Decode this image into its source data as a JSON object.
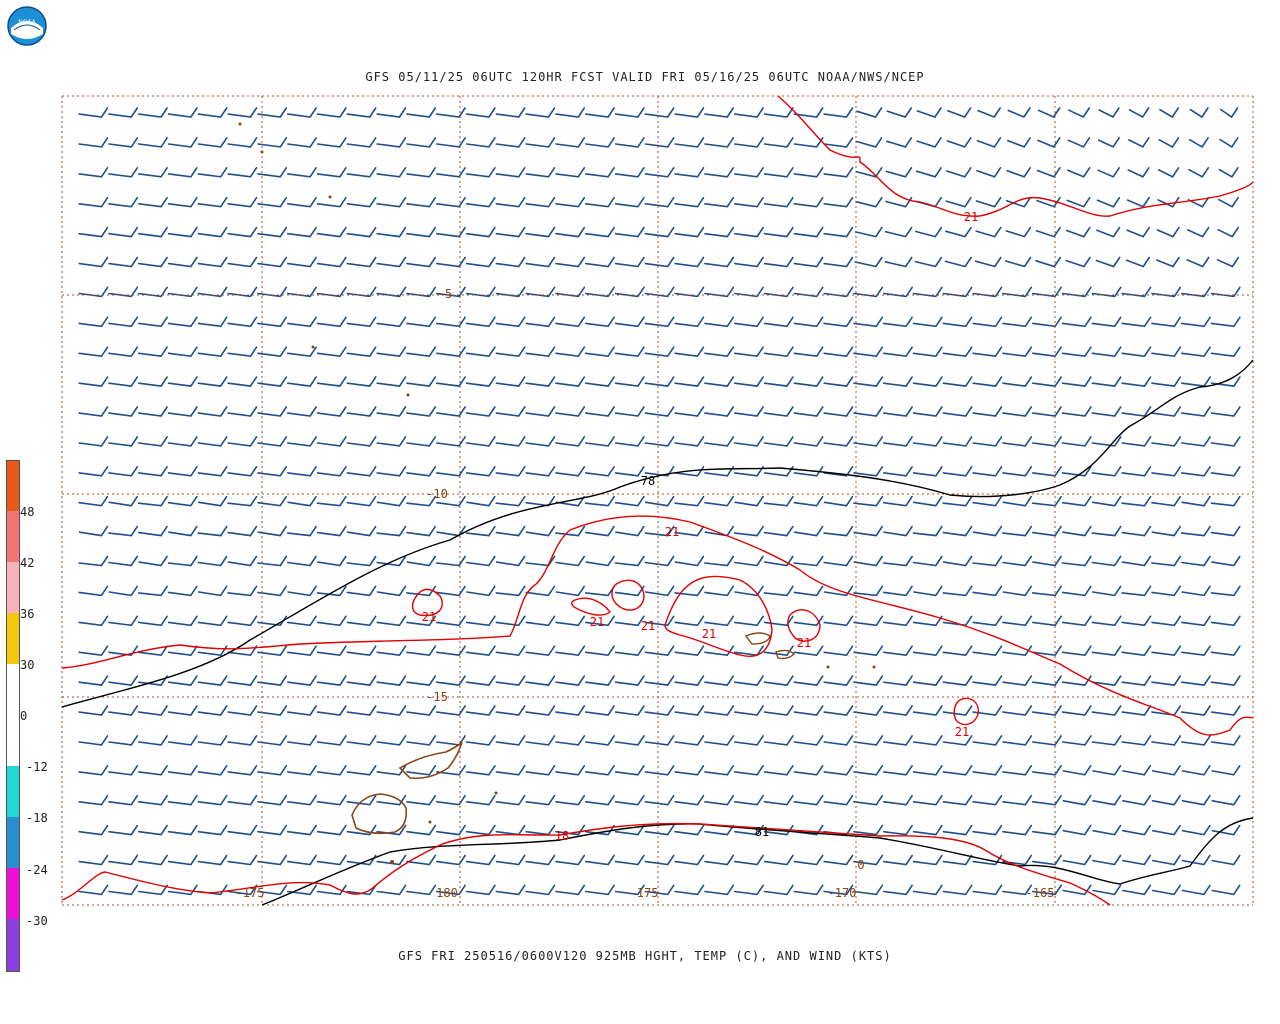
{
  "header": {
    "title": "GFS 05/11/25 06UTC 120HR FCST VALID FRI 05/16/25 06UTC NOAA/NWS/NCEP",
    "logo_text": "NOAA"
  },
  "footer": {
    "caption": "GFS FRI 250516/0600V120 925MB HGHT, TEMP (C), AND WIND (KTS)"
  },
  "map": {
    "longitudes": [
      "-175",
      "180",
      "-175",
      "-170",
      "-165"
    ],
    "latitudes": [
      "-5",
      "-10",
      "-15"
    ],
    "height_contour_labels": [
      "78",
      "81"
    ],
    "temp_contour_labels": [
      "21",
      "21",
      "21",
      "21",
      "21",
      "21",
      "21",
      "18"
    ],
    "misc_label": "0",
    "colors": {
      "grid": "#a0522d",
      "wind_barb": "#1f4e8c",
      "height_contour": "#000000",
      "temperature_contour": "#e00000",
      "coastline": "#8b4513"
    }
  },
  "colorbar": {
    "labels": [
      "48",
      "42",
      "36",
      "30",
      "0",
      "-12",
      "-18",
      "-24",
      "-30"
    ],
    "colors": [
      "#e85a1a",
      "#f07575",
      "#f6b4b8",
      "#f2c80f",
      "#ffffff",
      "#ffffff",
      "#1fd9d0",
      "#2a8fcf",
      "#ee10d8",
      "#8b3fe0"
    ]
  }
}
